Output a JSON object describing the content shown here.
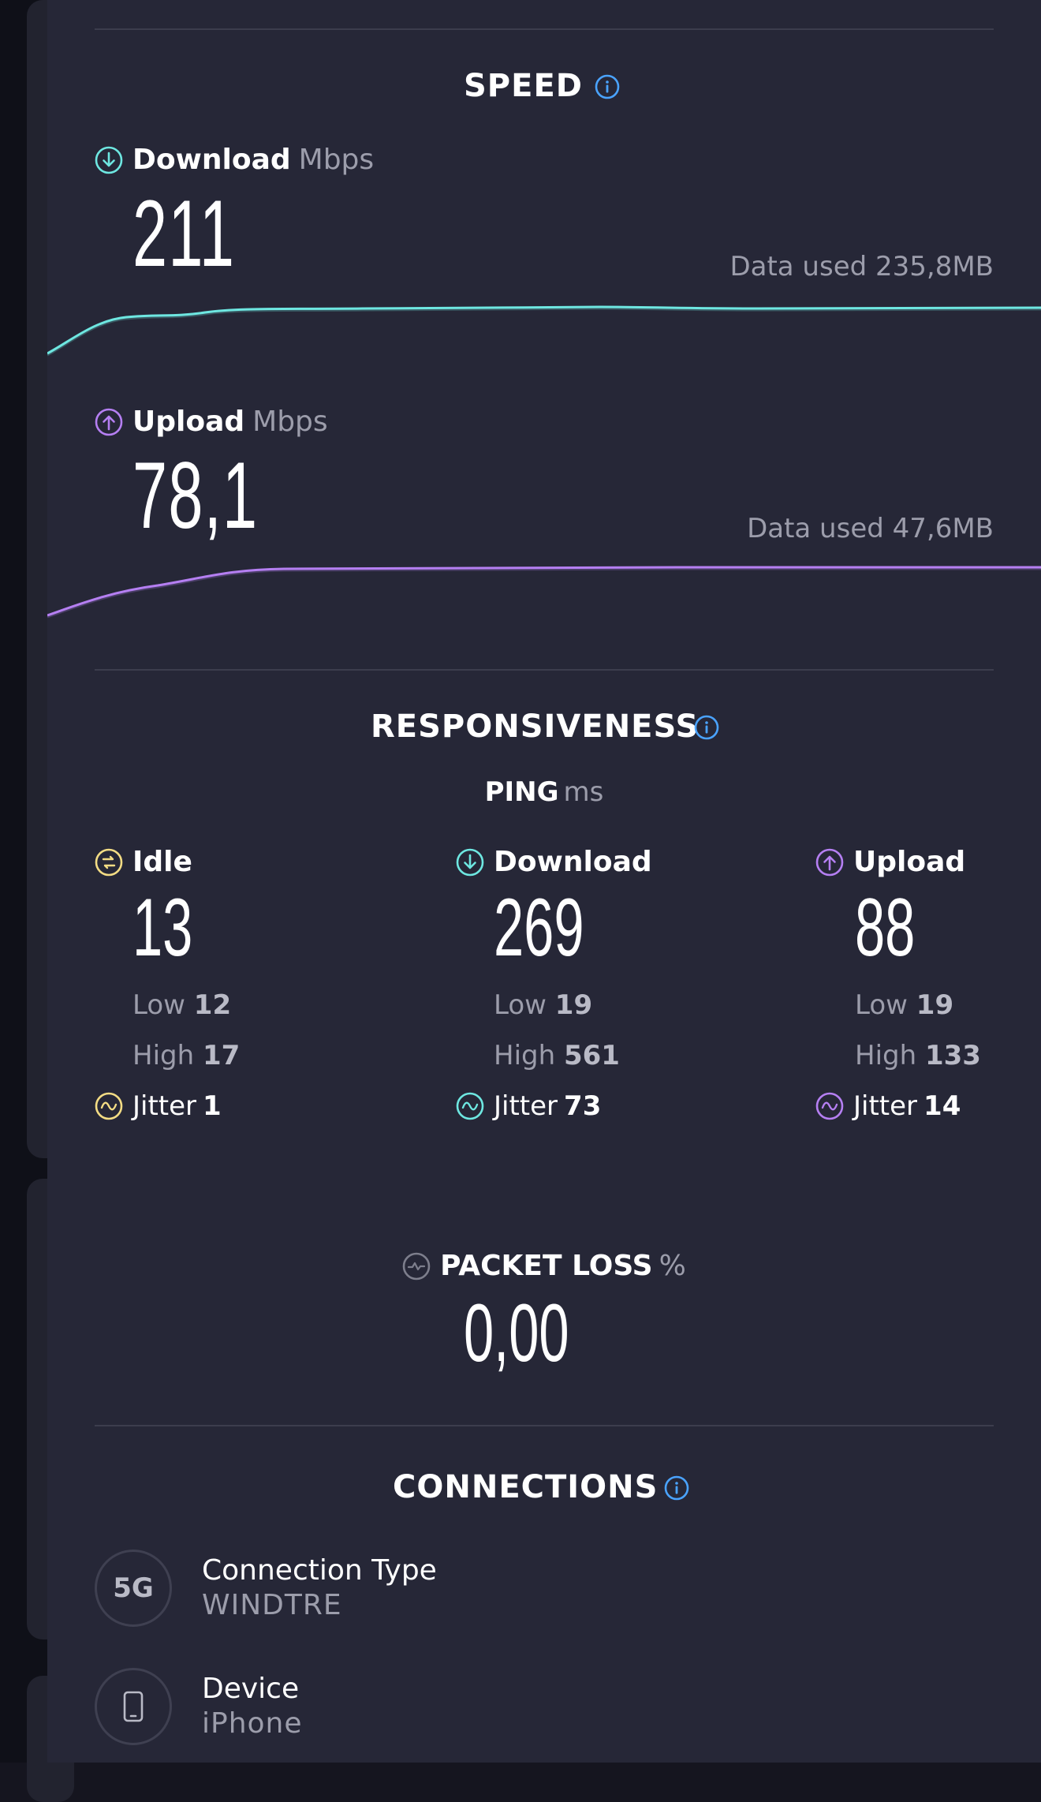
{
  "speed": {
    "title": "SPEED",
    "download": {
      "label": "Download",
      "unit": "Mbps",
      "value": "211",
      "data_used": "Data used 235,8MB"
    },
    "upload": {
      "label": "Upload",
      "unit": "Mbps",
      "value": "78,1",
      "data_used": "Data used 47,6MB"
    }
  },
  "responsiveness": {
    "title": "RESPONSIVENESS",
    "ping_label": "PING",
    "ping_unit": "ms",
    "columns": [
      {
        "label": "Idle",
        "value": "13",
        "low_label": "Low",
        "low": "12",
        "high_label": "High",
        "high": "17",
        "jitter_label": "Jitter",
        "jitter": "1"
      },
      {
        "label": "Download",
        "value": "269",
        "low_label": "Low",
        "low": "19",
        "high_label": "High",
        "high": "561",
        "jitter_label": "Jitter",
        "jitter": "73"
      },
      {
        "label": "Upload",
        "value": "88",
        "low_label": "Low",
        "low": "19",
        "high_label": "High",
        "high": "133",
        "jitter_label": "Jitter",
        "jitter": "14"
      }
    ]
  },
  "packet_loss": {
    "label": "PACKET LOSS",
    "unit": "%",
    "value": "0,00"
  },
  "connections": {
    "title": "CONNECTIONS",
    "items": [
      {
        "badge": "5G",
        "key": "Connection Type",
        "value": "WINDTRE"
      },
      {
        "icon": "phone-icon",
        "key": "Device",
        "value": "iPhone"
      }
    ]
  },
  "colors": {
    "download": "#6ee7e1",
    "upload": "#b57ff2",
    "idle": "#f3dc84",
    "info": "#4aa3ff"
  }
}
